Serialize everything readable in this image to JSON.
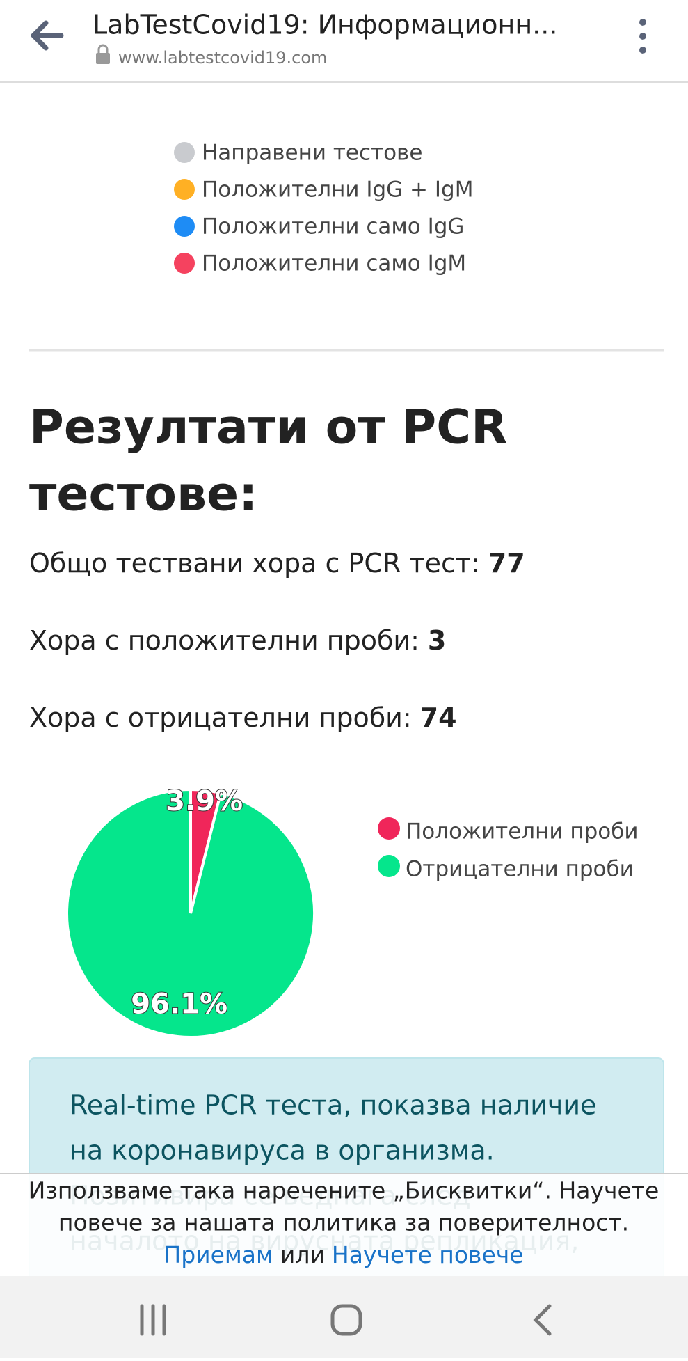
{
  "header": {
    "title": "LabTestCovid19: Информационн...",
    "url": "www.labtestcovid19.com"
  },
  "legend": [
    {
      "label": "Направени тестове",
      "color": "#c9cbcf"
    },
    {
      "label": "Положителни IgG + IgM",
      "color": "#ffb024"
    },
    {
      "label": "Положителни само IgG",
      "color": "#1e8cf5"
    },
    {
      "label": "Положителни само IgM",
      "color": "#f5425f"
    }
  ],
  "section": {
    "title_lines": [
      "Резултати от PCR",
      "тестове:"
    ],
    "stats": [
      {
        "label": "Общо тествани хора с PCR тест:",
        "value": 77
      },
      {
        "label": "Хора с положителни проби:",
        "value": 3
      },
      {
        "label": "Хора с отрицателни проби:",
        "value": 74
      }
    ]
  },
  "chart_data": {
    "type": "pie",
    "categories": [
      "Положителни проби",
      "Отрицателни проби"
    ],
    "values": [
      3.9,
      96.1
    ],
    "value_labels": [
      "3.9%",
      "96.1%"
    ],
    "colors": [
      "#f0265a",
      "#05e68c"
    ]
  },
  "info_box": {
    "lines": [
      "Real-time PCR теста, показва наличие",
      "на коронавируса в организма.",
      "Позитивира се веднага след",
      "началото на вирусната репликация,"
    ]
  },
  "cookie_banner": {
    "lines": [
      "Използваме така наречените „Бисквитки“. Научете",
      "повече за нашата политика за поверителност."
    ],
    "accept": "Приемам",
    "or": "или",
    "learn_more": "Научете повече"
  }
}
